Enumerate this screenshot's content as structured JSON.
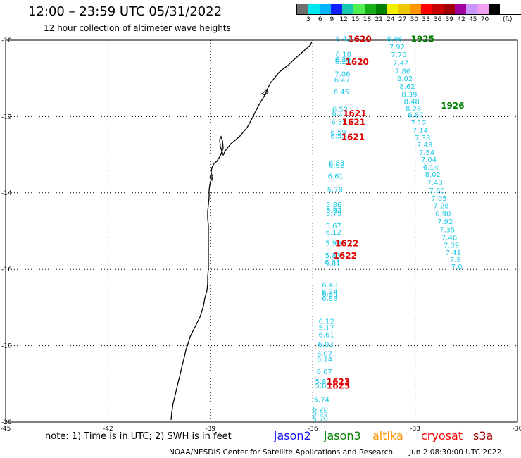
{
  "header": {
    "title": "12:00 – 23:59 UTC 05/31/2022",
    "subtitle": "12 hour collection of altimeter wave heights"
  },
  "legend": {
    "colors": [
      "#707070",
      "#00e8f0",
      "#00b4ff",
      "#1020ff",
      "#14c8b4",
      "#50f050",
      "#18b018",
      "#008000",
      "#f0f000",
      "#f0c800",
      "#ff9600",
      "#ff0000",
      "#c80000",
      "#a00000",
      "#a000a0",
      "#c896ff",
      "#f0a0f0",
      "#000000"
    ],
    "ticks": [
      "3",
      "6",
      "9",
      "12",
      "15",
      "18",
      "21",
      "24",
      "27",
      "30",
      "33",
      "36",
      "39",
      "42",
      "45",
      "70"
    ],
    "unit": "(ft)"
  },
  "axes": {
    "lon_labels": [
      "-45",
      "-42",
      "-39",
      "-36",
      "-33",
      "-30"
    ],
    "lat_labels": [
      "-10",
      "-12",
      "-14",
      "-16",
      "-18",
      "-20"
    ]
  },
  "footer": {
    "note": "note:  1) Time is in UTC;  2) SWH is in feet",
    "credit": "NOAA/NESDIS Center for Satellite Applications and Research",
    "timestamp": "Jun  2 08:30:00 UTC 2022",
    "satellites": [
      {
        "name": "jason2",
        "color": "#1010ff"
      },
      {
        "name": "jason3",
        "color": "#008000"
      },
      {
        "name": "altika",
        "color": "#ff9600"
      },
      {
        "name": "cryosat",
        "color": "#ff0000"
      },
      {
        "name": "s3a",
        "color": "#a00000"
      }
    ]
  },
  "tracks": [
    {
      "name": "near-shore track",
      "color": "#1ec8e6",
      "points": [
        {
          "lon": -35.1,
          "lat": -9.95,
          "v": "6.43"
        },
        {
          "lon": -35.1,
          "lat": -10.36,
          "v": "6.10"
        },
        {
          "lon": -35.12,
          "lat": -10.5,
          "v": "6.20"
        },
        {
          "lon": -35.12,
          "lat": -10.55,
          "v": "6.25"
        },
        {
          "lon": -35.13,
          "lat": -10.88,
          "v": "7.06"
        },
        {
          "lon": -35.14,
          "lat": -11.03,
          "v": "6.47"
        },
        {
          "lon": -35.16,
          "lat": -11.35,
          "v": "6.45"
        },
        {
          "lon": -35.2,
          "lat": -11.8,
          "v": "6.52"
        },
        {
          "lon": -35.21,
          "lat": -11.9,
          "v": "6.13"
        },
        {
          "lon": -35.23,
          "lat": -12.13,
          "v": "6.35"
        },
        {
          "lon": -35.25,
          "lat": -12.4,
          "v": "6.59"
        },
        {
          "lon": -35.25,
          "lat": -12.5,
          "v": "6.55"
        },
        {
          "lon": -35.3,
          "lat": -13.2,
          "v": "6.83"
        },
        {
          "lon": -35.3,
          "lat": -13.27,
          "v": "6.62"
        },
        {
          "lon": -35.33,
          "lat": -13.55,
          "v": "6.61"
        },
        {
          "lon": -35.35,
          "lat": -13.9,
          "v": "5.78"
        },
        {
          "lon": -35.38,
          "lat": -14.3,
          "v": "5.86"
        },
        {
          "lon": -35.38,
          "lat": -14.4,
          "v": "5.63"
        },
        {
          "lon": -35.38,
          "lat": -14.45,
          "v": "5.82"
        },
        {
          "lon": -35.38,
          "lat": -14.52,
          "v": "5.79"
        },
        {
          "lon": -35.39,
          "lat": -14.85,
          "v": "5.67"
        },
        {
          "lon": -35.39,
          "lat": -15.02,
          "v": "6.12"
        },
        {
          "lon": -35.4,
          "lat": -15.3,
          "v": "5.90"
        },
        {
          "lon": -35.41,
          "lat": -15.63,
          "v": "5.83"
        },
        {
          "lon": -35.42,
          "lat": -15.8,
          "v": "6.31"
        },
        {
          "lon": -35.42,
          "lat": -15.85,
          "v": "5.81"
        },
        {
          "lon": -35.5,
          "lat": -16.4,
          "v": "6.40"
        },
        {
          "lon": -35.5,
          "lat": -16.58,
          "v": "6.24"
        },
        {
          "lon": -35.5,
          "lat": -16.63,
          "v": "6.34"
        },
        {
          "lon": -35.5,
          "lat": -16.75,
          "v": "6.83"
        },
        {
          "lon": -35.6,
          "lat": -17.35,
          "v": "6.12"
        },
        {
          "lon": -35.6,
          "lat": -17.52,
          "v": "5.17"
        },
        {
          "lon": -35.6,
          "lat": -17.7,
          "v": "6.61"
        },
        {
          "lon": -35.62,
          "lat": -17.95,
          "v": "6.03"
        },
        {
          "lon": -35.65,
          "lat": -18.2,
          "v": "6.07"
        },
        {
          "lon": -35.65,
          "lat": -18.35,
          "v": "6.14"
        },
        {
          "lon": -35.66,
          "lat": -18.67,
          "v": "6.07"
        },
        {
          "lon": -35.7,
          "lat": -18.93,
          "v": "5.87"
        },
        {
          "lon": -35.7,
          "lat": -19.03,
          "v": "5.85"
        },
        {
          "lon": -35.74,
          "lat": -19.4,
          "v": "5.74"
        },
        {
          "lon": -35.78,
          "lat": -19.65,
          "v": "6.20"
        },
        {
          "lon": -35.78,
          "lat": -19.75,
          "v": "5.55"
        },
        {
          "lon": -35.78,
          "lat": -19.9,
          "v": "5.70"
        }
      ]
    },
    {
      "name": "offshore track",
      "color": "#1ec8e6",
      "points": [
        {
          "lon": -33.6,
          "lat": -9.95,
          "v": "8.46"
        },
        {
          "lon": -33.53,
          "lat": -10.17,
          "v": "7.92"
        },
        {
          "lon": -33.48,
          "lat": -10.37,
          "v": "7.70"
        },
        {
          "lon": -33.42,
          "lat": -10.58,
          "v": "7.47"
        },
        {
          "lon": -33.36,
          "lat": -10.8,
          "v": "7.86"
        },
        {
          "lon": -33.3,
          "lat": -11.0,
          "v": "8.02"
        },
        {
          "lon": -33.23,
          "lat": -11.2,
          "v": "8.62"
        },
        {
          "lon": -33.17,
          "lat": -11.41,
          "v": "8.39"
        },
        {
          "lon": -33.1,
          "lat": -11.6,
          "v": "8.48"
        },
        {
          "lon": -33.05,
          "lat": -11.78,
          "v": "8.28"
        },
        {
          "lon": -32.98,
          "lat": -11.95,
          "v": "6.87"
        },
        {
          "lon": -32.9,
          "lat": -12.16,
          "v": "7.12"
        },
        {
          "lon": -32.85,
          "lat": -12.35,
          "v": "7.14"
        },
        {
          "lon": -32.78,
          "lat": -12.55,
          "v": "7.38"
        },
        {
          "lon": -32.72,
          "lat": -12.73,
          "v": "7.48"
        },
        {
          "lon": -32.66,
          "lat": -12.93,
          "v": "7.54"
        },
        {
          "lon": -32.6,
          "lat": -13.12,
          "v": "7.04"
        },
        {
          "lon": -32.54,
          "lat": -13.32,
          "v": "6.14"
        },
        {
          "lon": -32.48,
          "lat": -13.51,
          "v": "8.02"
        },
        {
          "lon": -32.42,
          "lat": -13.72,
          "v": "7.43"
        },
        {
          "lon": -32.36,
          "lat": -13.93,
          "v": "7.60"
        },
        {
          "lon": -32.3,
          "lat": -14.13,
          "v": "7.05"
        },
        {
          "lon": -32.24,
          "lat": -14.33,
          "v": "7.28"
        },
        {
          "lon": -32.18,
          "lat": -14.53,
          "v": "6.90"
        },
        {
          "lon": -32.12,
          "lat": -14.74,
          "v": "7.92"
        },
        {
          "lon": -32.06,
          "lat": -14.95,
          "v": "7.35"
        },
        {
          "lon": -32.0,
          "lat": -15.16,
          "v": "7.46"
        },
        {
          "lon": -31.94,
          "lat": -15.36,
          "v": "7.39"
        },
        {
          "lon": -31.88,
          "lat": -15.55,
          "v": "7.41"
        },
        {
          "lon": -31.82,
          "lat": -15.74,
          "v": "7.9"
        },
        {
          "lon": -31.78,
          "lat": -15.92,
          "v": "7.0"
        }
      ]
    }
  ],
  "time_labels": [
    {
      "lon": -34.62,
      "lat": -9.95,
      "v": "1620",
      "color": "#e00000"
    },
    {
      "lon": -34.7,
      "lat": -10.55,
      "v": "1620",
      "color": "#e00000"
    },
    {
      "lon": -34.77,
      "lat": -11.9,
      "v": "1621",
      "color": "#e00000"
    },
    {
      "lon": -34.8,
      "lat": -12.13,
      "v": "1621",
      "color": "#e00000"
    },
    {
      "lon": -34.82,
      "lat": -12.52,
      "v": "1621",
      "color": "#e00000"
    },
    {
      "lon": -35.0,
      "lat": -15.3,
      "v": "1622",
      "color": "#e00000"
    },
    {
      "lon": -35.05,
      "lat": -15.63,
      "v": "1622",
      "color": "#e00000"
    },
    {
      "lon": -35.25,
      "lat": -18.93,
      "v": "1623",
      "color": "#e00000"
    },
    {
      "lon": -35.25,
      "lat": -19.03,
      "v": "1623",
      "color": "#e00000"
    },
    {
      "lon": -32.78,
      "lat": -9.95,
      "v": "1925",
      "color": "#008000"
    },
    {
      "lon": -31.9,
      "lat": -11.7,
      "v": "1926",
      "color": "#008000"
    }
  ]
}
